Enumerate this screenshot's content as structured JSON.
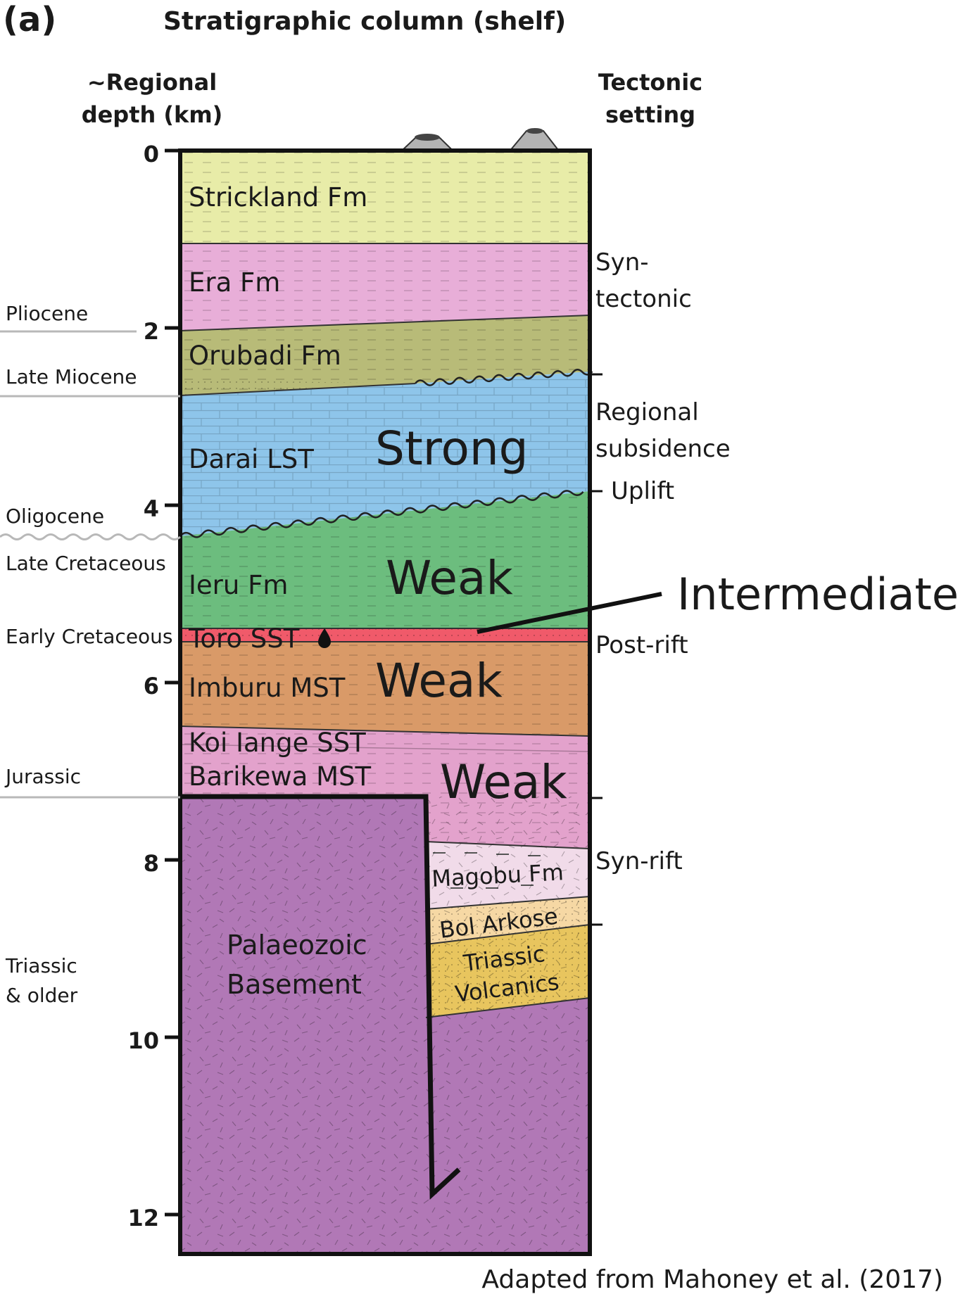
{
  "panel_label": "(a)",
  "title": "Stratigraphic column (shelf)",
  "depth_axis": {
    "title_line1": "~Regional",
    "title_line2": "depth (km)",
    "ticks": [
      "0",
      "2",
      "4",
      "6",
      "8",
      "10",
      "12"
    ]
  },
  "tectonic_header": {
    "line1": "Tectonic",
    "line2": "setting"
  },
  "ages": {
    "pliocene": "Pliocene",
    "late_miocene": "Late Miocene",
    "oligocene": "Oligocene",
    "late_cretaceous": "Late Cretaceous",
    "early_cretaceous": "Early Cretaceous",
    "jurassic": "Jurassic",
    "triassic_line1": "Triassic",
    "triassic_line2": "& older"
  },
  "formations": {
    "strickland": "Strickland Fm",
    "era": "Era Fm",
    "orubadi": "Orubadi Fm",
    "darai": "Darai LST",
    "ieru": "Ieru Fm",
    "toro": "Toro SST",
    "imburu": "Imburu MST",
    "koi_iange": "Koi Iange SST",
    "barikewa": "Barikewa MST",
    "magobu": "Magobu Fm",
    "bol_arkose": "Bol Arkose",
    "triassic_volc_line1": "Triassic",
    "triassic_volc_line2": "Volcanics",
    "basement_line1": "Palaeozoic",
    "basement_line2": "Basement"
  },
  "strength": {
    "darai": "Strong",
    "ieru": "Weak",
    "imburu": "Weak",
    "barikewa": "Weak",
    "toro": "Intermediate"
  },
  "tectonic": {
    "syntectonic_line1": "Syn-",
    "syntectonic_line2": "tectonic",
    "regional_line1": "Regional",
    "regional_line2": "subsidence",
    "uplift": "Uplift",
    "postrift": "Post-rift",
    "synrift": "Syn-rift"
  },
  "credit": "Adapted from Mahoney et al. (2017)",
  "colors": {
    "strickland": "#e8eca8",
    "era": "#e8aed8",
    "orubadi": "#b8bb78",
    "darai": "#8ec5ea",
    "ieru": "#6cbd7e",
    "toro": "#f05a6a",
    "imburu": "#d99a68",
    "koi_barikewa": "#e3a2cc",
    "magobu": "#f1dbe9",
    "bol_arkose": "#f6d8a4",
    "triassic_volcanics": "#e8c55e",
    "basement": "#b178b6",
    "volcano": "#b3b3b3"
  }
}
